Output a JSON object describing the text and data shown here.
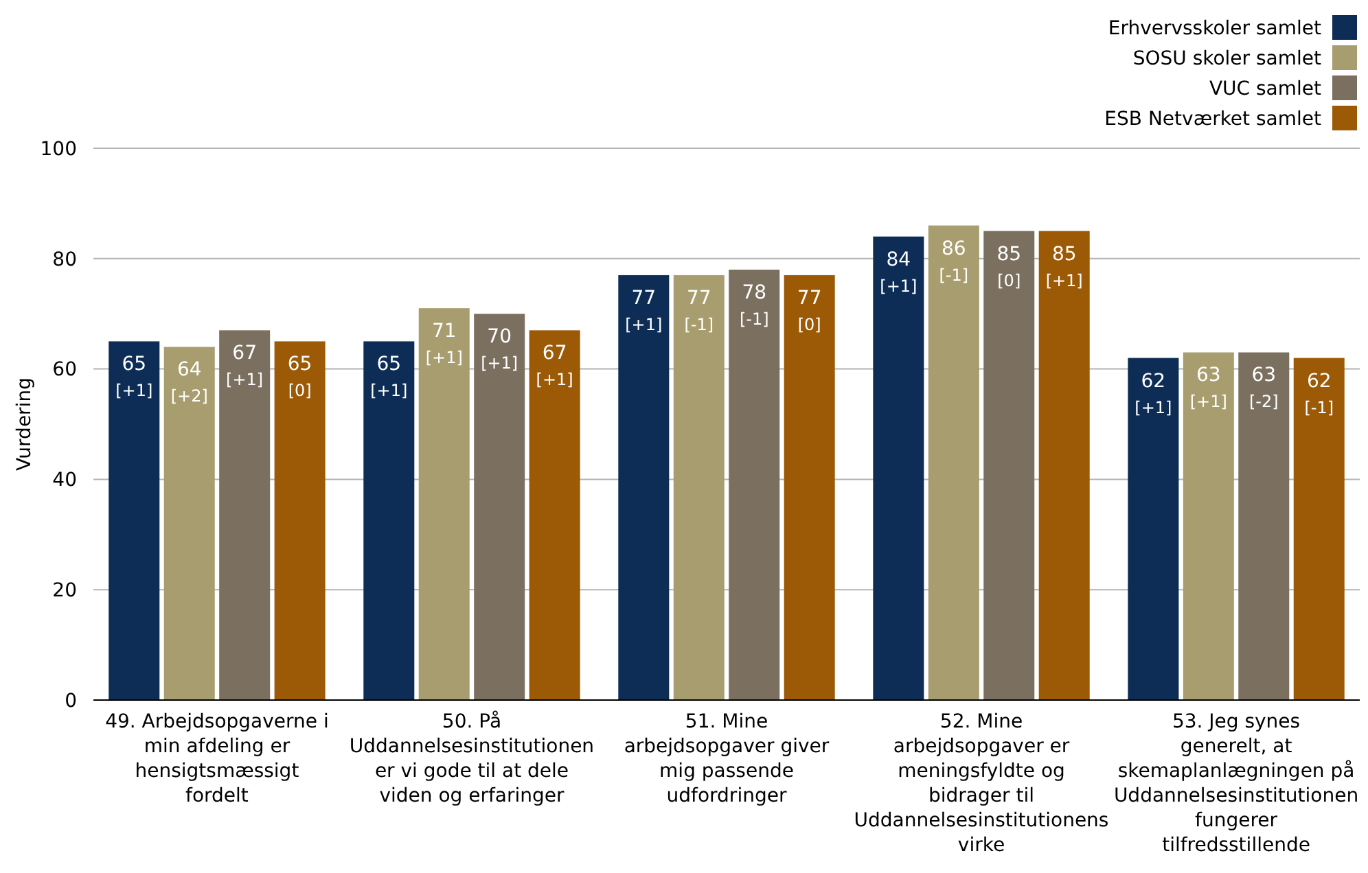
{
  "chart_data": {
    "type": "bar",
    "ylabel": "Vurdering",
    "categories": [
      "49. Arbejdsopgaverne i min afdeling er hensigtsmæssigt fordelt",
      "50. På Uddannelsesinstitutionen er vi gode til at dele viden og erfaringer",
      "51. Mine arbejdsopgaver giver mig passende udfordringer",
      "52. Mine arbejdsopgaver er meningsfyldte og bidrager til Uddannelsesinstitutionens virke",
      "53. Jeg synes generelt, at skemaplanlægningen på Uddannelsesinstitutionen fungerer tilfredsstillende"
    ],
    "series": [
      {
        "name": "Erhvervsskoler samlet",
        "color": "#0e2d56",
        "values": [
          65,
          65,
          77,
          84,
          62
        ],
        "value_labels": [
          "65 [+1]",
          "65 [+1]",
          "77 [+1]",
          "84 [+1]",
          "62 [+1]"
        ]
      },
      {
        "name": "SOSU skoler samlet",
        "color": "#a89d6e",
        "values": [
          64,
          71,
          77,
          86,
          63
        ],
        "value_labels": [
          "64 [+2]",
          "71 [+1]",
          "77 [-1]",
          "86 [-1]",
          "63 [+1]"
        ]
      },
      {
        "name": "VUC samlet",
        "color": "#7b6f60",
        "values": [
          67,
          70,
          78,
          85,
          63
        ],
        "value_labels": [
          "67 [+1]",
          "70 [+1]",
          "78 [-1]",
          "85 [0]",
          "63 [-2]"
        ]
      },
      {
        "name": "ESB Netværket samlet",
        "color": "#9c5a06",
        "values": [
          65,
          67,
          77,
          85,
          62
        ],
        "value_labels": [
          "65 [0]",
          "67 [+1]",
          "77 [0]",
          "85 [+1]",
          "62 [-1]"
        ]
      }
    ],
    "ylim": [
      0,
      100
    ],
    "yticks": [
      0,
      20,
      40,
      60,
      80,
      100
    ],
    "grid": "y",
    "legend": "top right"
  }
}
